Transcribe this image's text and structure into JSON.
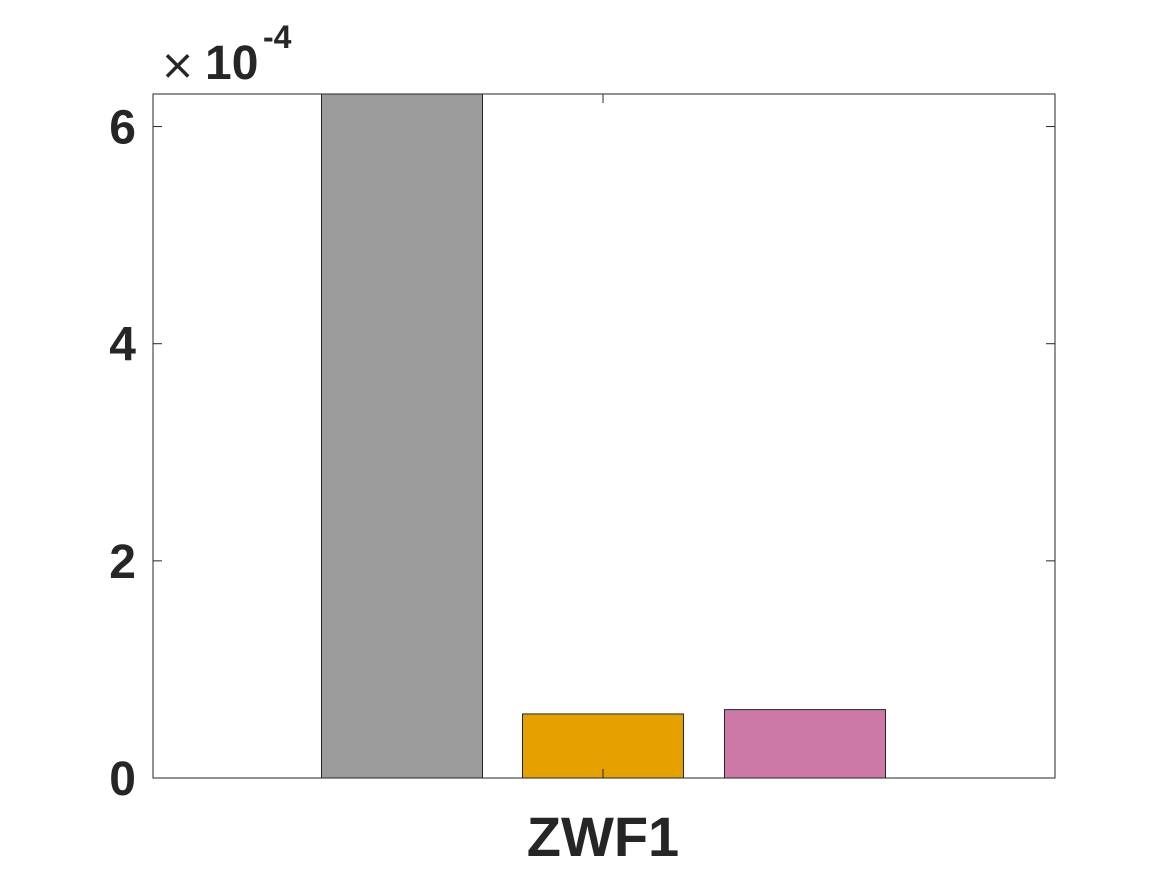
{
  "chart_data": {
    "type": "bar",
    "title": "",
    "xlabel": "",
    "ylabel": "",
    "categories": [
      "ZWF1"
    ],
    "series": [
      {
        "values": [
          0.00063
        ],
        "color": "#9b9b9b"
      },
      {
        "values": [
          5.9e-05
        ],
        "color": "#e5a100"
      },
      {
        "values": [
          6.3e-05
        ],
        "color": "#cc79a7"
      }
    ],
    "ylim": [
      0,
      0.00063
    ],
    "yticks": [
      0,
      2,
      4,
      6
    ],
    "ytick_labels": [
      "0",
      "2",
      "4",
      "6"
    ],
    "y_exponent": {
      "times": "×",
      "base": "10",
      "exponent": "-4"
    },
    "grid": false,
    "legend": "none"
  }
}
